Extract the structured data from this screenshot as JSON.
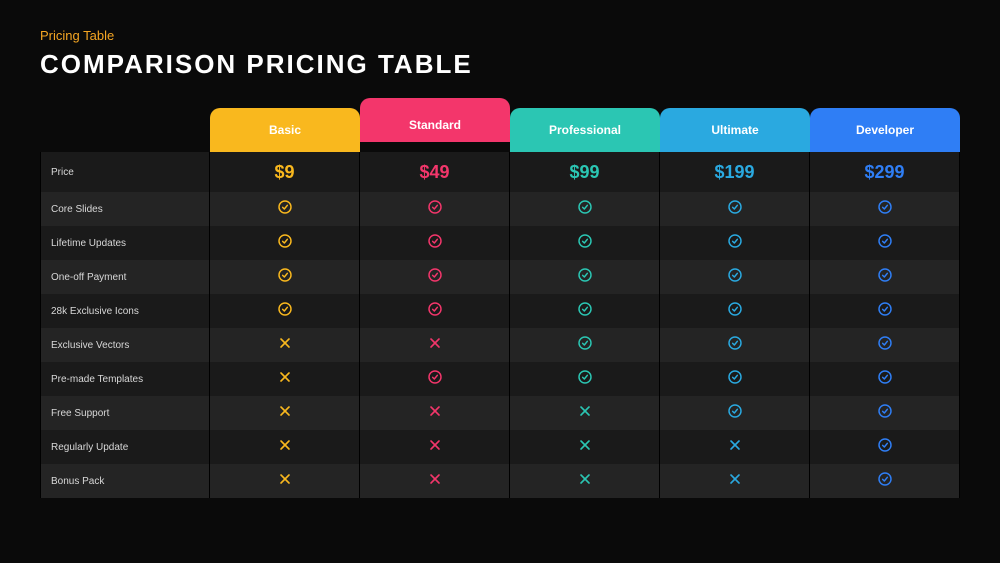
{
  "page": {
    "subtitle": "Pricing Table",
    "subtitle_color": "#f5a623",
    "title": "COMPARISON PRICING TABLE",
    "background": "#0a0a0a"
  },
  "table": {
    "row_bg_odd": "#1a1a1a",
    "row_bg_even": "#242424",
    "border_color": "#000000",
    "label_color": "#d8d8d8",
    "label_fontsize": 10,
    "price_fontsize": 18
  },
  "plans": [
    {
      "key": "basic",
      "label": "Basic",
      "color": "#f9b81e",
      "price": "$9",
      "featured": false
    },
    {
      "key": "standard",
      "label": "Standard",
      "color": "#f3366b",
      "price": "$49",
      "featured": true
    },
    {
      "key": "professional",
      "label": "Professional",
      "color": "#2bc6b3",
      "price": "$99",
      "featured": false
    },
    {
      "key": "ultimate",
      "label": "Ultimate",
      "color": "#2aa9e0",
      "price": "$199",
      "featured": false
    },
    {
      "key": "developer",
      "label": "Developer",
      "color": "#2f7ef5",
      "price": "$299",
      "featured": false
    }
  ],
  "features": [
    {
      "label": "Price",
      "type": "price",
      "values": [
        "$9",
        "$49",
        "$99",
        "$199",
        "$299"
      ]
    },
    {
      "label": "Core Slides",
      "type": "check",
      "values": [
        true,
        true,
        true,
        true,
        true
      ]
    },
    {
      "label": "Lifetime Updates",
      "type": "check",
      "values": [
        true,
        true,
        true,
        true,
        true
      ]
    },
    {
      "label": "One-off Payment",
      "type": "check",
      "values": [
        true,
        true,
        true,
        true,
        true
      ]
    },
    {
      "label": "28k Exclusive Icons",
      "type": "check",
      "values": [
        true,
        true,
        true,
        true,
        true
      ]
    },
    {
      "label": "Exclusive Vectors",
      "type": "check",
      "values": [
        false,
        false,
        true,
        true,
        true
      ]
    },
    {
      "label": "Pre-made Templates",
      "type": "check",
      "values": [
        false,
        true,
        true,
        true,
        true
      ]
    },
    {
      "label": "Free Support",
      "type": "check",
      "values": [
        false,
        false,
        false,
        true,
        true
      ]
    },
    {
      "label": "Regularly Update",
      "type": "check",
      "values": [
        false,
        false,
        false,
        false,
        true
      ]
    },
    {
      "label": "Bonus Pack",
      "type": "check",
      "values": [
        false,
        false,
        false,
        false,
        true
      ]
    }
  ],
  "icons": {
    "check": "circle-check",
    "cross": "x-mark"
  }
}
